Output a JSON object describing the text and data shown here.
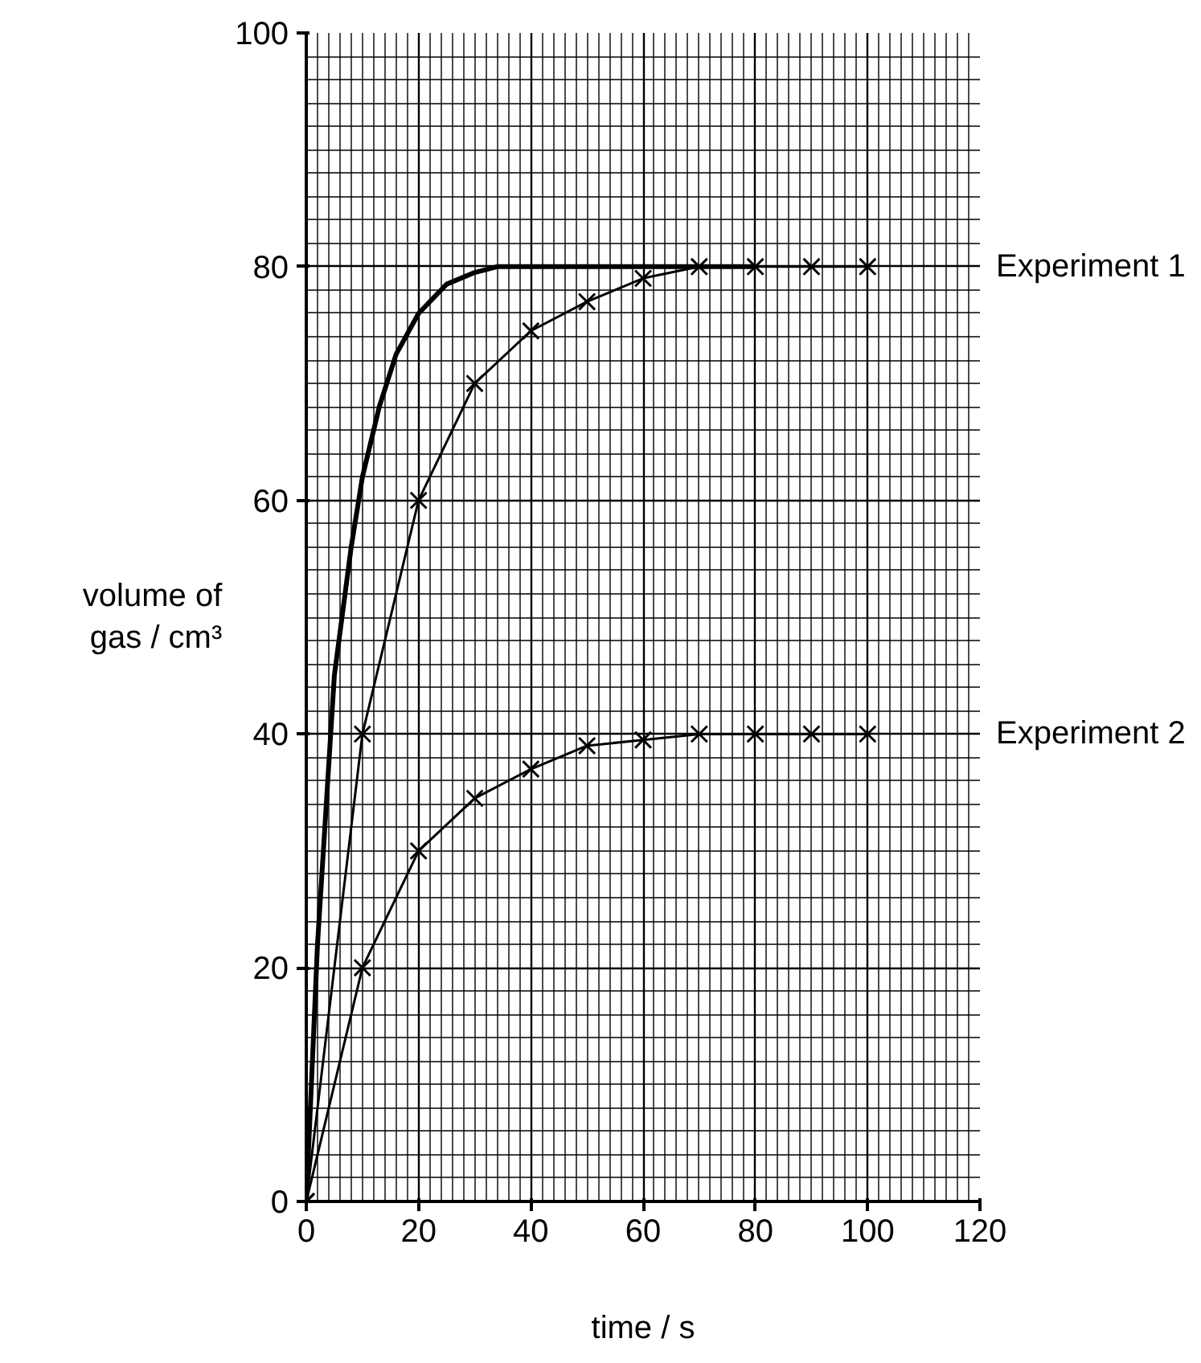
{
  "chart_data": {
    "type": "line",
    "xlabel": "time / s",
    "ylabel": "volume of\ngas / cm³",
    "xlim": [
      0,
      120
    ],
    "ylim": [
      0,
      100
    ],
    "xticks": [
      0,
      20,
      40,
      60,
      80,
      100,
      120
    ],
    "yticks": [
      0,
      20,
      40,
      60,
      80,
      100
    ],
    "grid": true,
    "series": [
      {
        "name": null,
        "color": "#000000",
        "marker": "none",
        "x": [
          0,
          2,
          5,
          8,
          10,
          13,
          16,
          20,
          25,
          30,
          34,
          37,
          40,
          60,
          80
        ],
        "values": [
          0,
          22,
          45,
          56,
          62,
          68,
          72.5,
          76,
          78.5,
          79.5,
          80,
          80,
          80,
          80,
          80
        ]
      },
      {
        "name": "Experiment 1",
        "color": "#000000",
        "marker": "cross",
        "x": [
          0,
          10,
          20,
          30,
          40,
          50,
          60,
          70,
          80,
          90,
          100
        ],
        "values": [
          0,
          40,
          60,
          70,
          74.5,
          77,
          79,
          80,
          80,
          80,
          80
        ]
      },
      {
        "name": "Experiment 2",
        "color": "#000000",
        "marker": "cross",
        "x": [
          0,
          10,
          20,
          30,
          40,
          50,
          60,
          70,
          80,
          90,
          100
        ],
        "values": [
          0,
          20,
          30,
          34.5,
          37,
          39,
          39.5,
          40,
          40,
          40,
          40
        ]
      }
    ]
  }
}
